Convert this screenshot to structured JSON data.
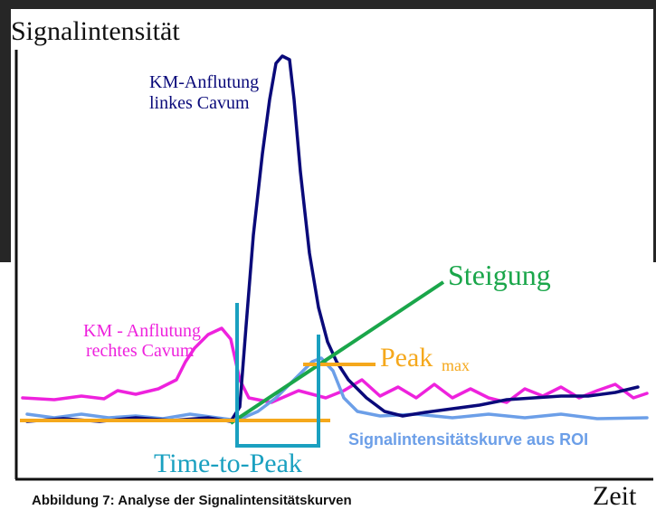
{
  "axes": {
    "y_label": "Signalintensität",
    "x_label": "Zeit"
  },
  "annotations": {
    "left_cavum": [
      "KM-Anflutung",
      "linkes Cavum"
    ],
    "right_cavum": [
      "KM - Anflutung",
      "rechtes Cavum"
    ],
    "slope": "Steigung",
    "peak": "Peak",
    "peak_sub": "max",
    "time_to_peak": "Time-to-Peak",
    "roi_curve": "Signalintensitätskurve aus ROI"
  },
  "caption": "Abbildung 7: Analyse der Signalintensitätskurven"
}
